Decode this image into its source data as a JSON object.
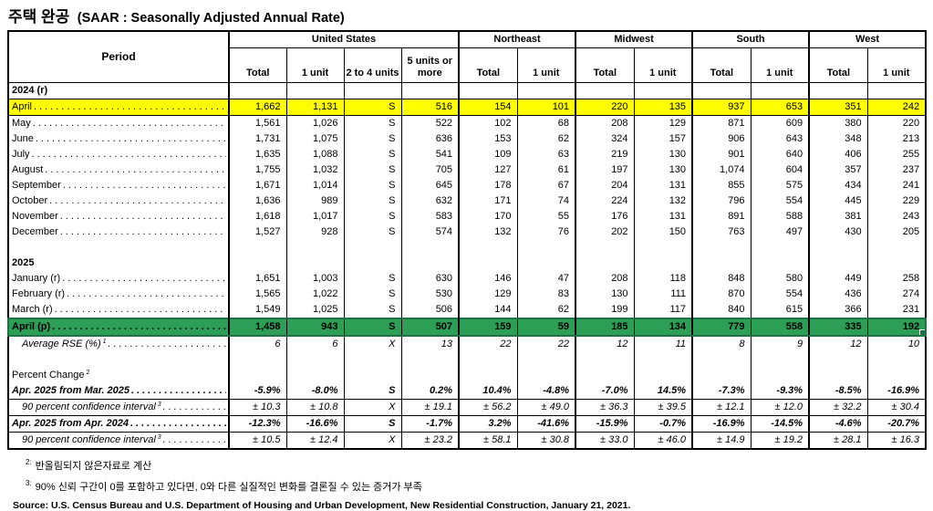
{
  "title": {
    "korean": "주택 완공",
    "english": "(SAAR : Seasonally Adjusted Annual Rate)"
  },
  "colors": {
    "highlight_yellow": "#FFFF00",
    "highlight_green": "#2D9E55",
    "selection_border": "#1E7145"
  },
  "table": {
    "period_header": "Period",
    "groups": [
      {
        "label": "United States",
        "cols": [
          "Total",
          "1 unit",
          "2 to 4 units",
          "5 units or more"
        ]
      },
      {
        "label": "Northeast",
        "cols": [
          "Total",
          "1 unit"
        ]
      },
      {
        "label": "Midwest",
        "cols": [
          "Total",
          "1 unit"
        ]
      },
      {
        "label": "South",
        "cols": [
          "Total",
          "1 unit"
        ]
      },
      {
        "label": "West",
        "cols": [
          "Total",
          "1 unit"
        ]
      }
    ],
    "rows": [
      {
        "label": "2024 (r)",
        "style": "section"
      },
      {
        "label": "April",
        "style": "month",
        "highlight": "yellow",
        "leader": true,
        "values": [
          "1,662",
          "1,131",
          "S",
          "516",
          "154",
          "101",
          "220",
          "135",
          "937",
          "653",
          "351",
          "242"
        ]
      },
      {
        "label": "May",
        "style": "month",
        "leader": true,
        "values": [
          "1,561",
          "1,026",
          "S",
          "522",
          "102",
          "68",
          "208",
          "129",
          "871",
          "609",
          "380",
          "220"
        ]
      },
      {
        "label": "June",
        "style": "month",
        "leader": true,
        "values": [
          "1,731",
          "1,075",
          "S",
          "636",
          "153",
          "62",
          "324",
          "157",
          "906",
          "643",
          "348",
          "213"
        ]
      },
      {
        "label": "July",
        "style": "month",
        "leader": true,
        "values": [
          "1,635",
          "1,088",
          "S",
          "541",
          "109",
          "63",
          "219",
          "130",
          "901",
          "640",
          "406",
          "255"
        ]
      },
      {
        "label": "August",
        "style": "month",
        "leader": true,
        "values": [
          "1,755",
          "1,032",
          "S",
          "705",
          "127",
          "61",
          "197",
          "130",
          "1,074",
          "604",
          "357",
          "237"
        ]
      },
      {
        "label": "September",
        "style": "month",
        "leader": true,
        "values": [
          "1,671",
          "1,014",
          "S",
          "645",
          "178",
          "67",
          "204",
          "131",
          "855",
          "575",
          "434",
          "241"
        ]
      },
      {
        "label": "October",
        "style": "month",
        "leader": true,
        "values": [
          "1,636",
          "989",
          "S",
          "632",
          "171",
          "74",
          "224",
          "132",
          "796",
          "554",
          "445",
          "229"
        ]
      },
      {
        "label": "November",
        "style": "month",
        "leader": true,
        "values": [
          "1,618",
          "1,017",
          "S",
          "583",
          "170",
          "55",
          "176",
          "131",
          "891",
          "588",
          "381",
          "243"
        ]
      },
      {
        "label": "December",
        "style": "month",
        "leader": true,
        "values": [
          "1,527",
          "928",
          "S",
          "574",
          "132",
          "76",
          "202",
          "150",
          "763",
          "497",
          "430",
          "205"
        ]
      },
      {
        "style": "empty"
      },
      {
        "label": "2025",
        "style": "section"
      },
      {
        "label": "January (r)",
        "style": "month",
        "leader": true,
        "values": [
          "1,651",
          "1,003",
          "S",
          "630",
          "146",
          "47",
          "208",
          "118",
          "848",
          "580",
          "449",
          "258"
        ]
      },
      {
        "label": "February (r)",
        "style": "month",
        "leader": true,
        "values": [
          "1,565",
          "1,022",
          "S",
          "530",
          "129",
          "83",
          "130",
          "111",
          "870",
          "554",
          "436",
          "274"
        ]
      },
      {
        "label": "March (r)",
        "style": "month",
        "leader": true,
        "values": [
          "1,549",
          "1,025",
          "S",
          "506",
          "144",
          "62",
          "199",
          "117",
          "840",
          "615",
          "366",
          "231"
        ]
      },
      {
        "label": "April (p)",
        "style": "month",
        "highlight": "green",
        "leader": true,
        "values": [
          "1,458",
          "943",
          "S",
          "507",
          "159",
          "59",
          "185",
          "134",
          "779",
          "558",
          "335",
          "192"
        ]
      },
      {
        "label": "Average RSE (%)",
        "sup": "1",
        "style": "rse",
        "leader": true,
        "values": [
          "6",
          "6",
          "X",
          "13",
          "22",
          "22",
          "12",
          "11",
          "8",
          "9",
          "12",
          "10"
        ]
      },
      {
        "style": "empty"
      },
      {
        "label": "Percent Change",
        "sup": "2",
        "style": "pc-header"
      },
      {
        "label": "Apr. 2025 from Mar. 2025",
        "style": "pc-bold",
        "leader": true,
        "values": [
          "-5.9%",
          "-8.0%",
          "S",
          "0.2%",
          "10.4%",
          "-4.8%",
          "-7.0%",
          "14.5%",
          "-7.3%",
          "-9.3%",
          "-8.5%",
          "-16.9%"
        ]
      },
      {
        "label": "90 percent confidence interval",
        "sup": "3",
        "style": "pc-ci",
        "leader": true,
        "hairline": true,
        "values": [
          "± 10.3",
          "± 10.8",
          "X",
          "± 19.1",
          "± 56.2",
          "± 49.0",
          "± 36.3",
          "± 39.5",
          "± 12.1",
          "± 12.0",
          "± 32.2",
          "± 30.4"
        ]
      },
      {
        "label": "Apr. 2025 from Apr. 2024",
        "style": "pc-bold",
        "leader": true,
        "hairline": true,
        "values": [
          "-12.3%",
          "-16.6%",
          "S",
          "-1.7%",
          "3.2%",
          "-41.6%",
          "-15.9%",
          "-0.7%",
          "-16.9%",
          "-14.5%",
          "-4.6%",
          "-20.7%"
        ]
      },
      {
        "label": "90 percent confidence interval",
        "sup": "3",
        "style": "pc-ci",
        "leader": true,
        "hairline": true,
        "values": [
          "± 10.5",
          "± 12.4",
          "X",
          "± 23.2",
          "± 58.1",
          "± 30.8",
          "± 33.0",
          "± 46.0",
          "± 14.9",
          "± 19.2",
          "± 28.1",
          "± 16.3"
        ]
      }
    ]
  },
  "footnotes": [
    {
      "marker": "2:",
      "text": "반올림되지 않은자료로 계산"
    },
    {
      "marker": "3:",
      "text": "90% 신뢰 구간이 0를 포함하고 있다면, 0와 다른 실질적인 변화를 결론질 수 있는 증거가 부족"
    }
  ],
  "source": "Source: U.S. Census Bureau and U.S. Department of Housing and Urban Development, New Residential Construction, January 21, 2021."
}
